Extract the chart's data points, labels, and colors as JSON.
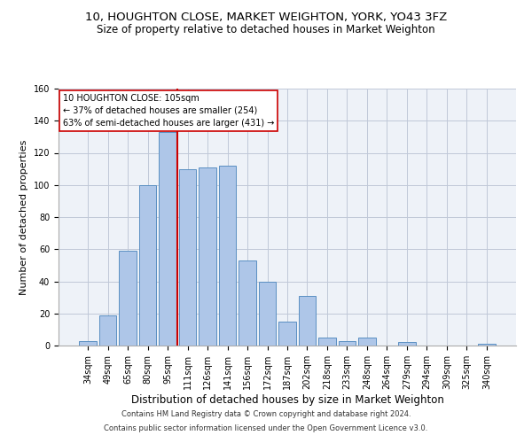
{
  "title1": "10, HOUGHTON CLOSE, MARKET WEIGHTON, YORK, YO43 3FZ",
  "title2": "Size of property relative to detached houses in Market Weighton",
  "xlabel": "Distribution of detached houses by size in Market Weighton",
  "ylabel": "Number of detached properties",
  "footnote1": "Contains HM Land Registry data © Crown copyright and database right 2024.",
  "footnote2": "Contains public sector information licensed under the Open Government Licence v3.0.",
  "categories": [
    "34sqm",
    "49sqm",
    "65sqm",
    "80sqm",
    "95sqm",
    "111sqm",
    "126sqm",
    "141sqm",
    "156sqm",
    "172sqm",
    "187sqm",
    "202sqm",
    "218sqm",
    "233sqm",
    "248sqm",
    "264sqm",
    "279sqm",
    "294sqm",
    "309sqm",
    "325sqm",
    "340sqm"
  ],
  "bar_values": [
    3,
    19,
    59,
    100,
    133,
    110,
    111,
    112,
    53,
    40,
    15,
    31,
    5,
    3,
    5,
    0,
    2,
    0,
    0,
    0,
    1
  ],
  "bar_color": "#aec6e8",
  "bar_edge_color": "#5a8fc2",
  "vline_color": "#cc0000",
  "annotation_text": "10 HOUGHTON CLOSE: 105sqm\n← 37% of detached houses are smaller (254)\n63% of semi-detached houses are larger (431) →",
  "annotation_box_color": "#ffffff",
  "annotation_box_edge": "#cc0000",
  "ylim": [
    0,
    160
  ],
  "yticks": [
    0,
    20,
    40,
    60,
    80,
    100,
    120,
    140,
    160
  ],
  "grid_color": "#c0c8d8",
  "bg_color": "#eef2f8",
  "title1_fontsize": 9.5,
  "title2_fontsize": 8.5,
  "xlabel_fontsize": 8.5,
  "ylabel_fontsize": 8,
  "tick_fontsize": 7,
  "footnote_fontsize": 6
}
